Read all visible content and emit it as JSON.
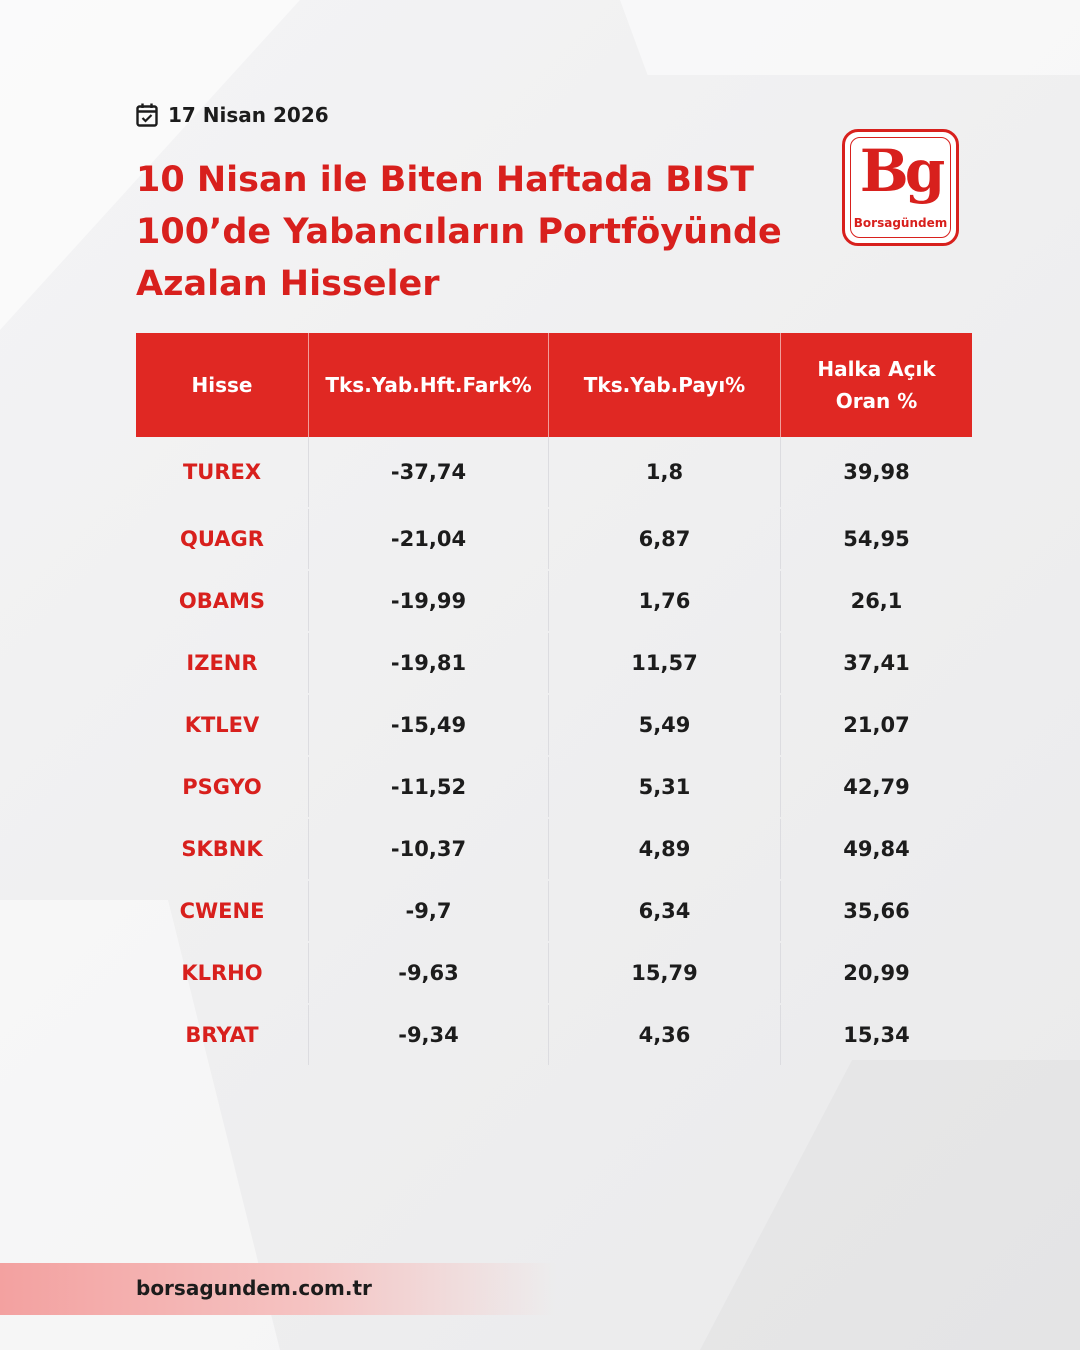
{
  "header": {
    "date": "17 Nisan 2026",
    "title": "10 Nisan ile Biten Haftada BIST 100’de Yabancıların Portföyünde Azalan Hisseler"
  },
  "logo": {
    "mark": "Bg",
    "wordmark": "Borsagündem"
  },
  "table": {
    "columns": [
      "Hisse",
      "Tks.Yab.Hft.Fark%",
      "Tks.Yab.Payı%",
      "Halka Açık Oran %"
    ],
    "rows": [
      [
        "TUREX",
        "-37,74",
        "1,8",
        "39,98"
      ],
      [
        "QUAGR",
        "-21,04",
        "6,87",
        "54,95"
      ],
      [
        "OBAMS",
        "-19,99",
        "1,76",
        "26,1"
      ],
      [
        "IZENR",
        "-19,81",
        "11,57",
        "37,41"
      ],
      [
        "KTLEV",
        "-15,49",
        "5,49",
        "21,07"
      ],
      [
        "PSGYO",
        "-11,52",
        "5,31",
        "42,79"
      ],
      [
        "SKBNK",
        "-10,37",
        "4,89",
        "49,84"
      ],
      [
        "CWENE",
        "-9,7",
        "6,34",
        "35,66"
      ],
      [
        "KLRHO",
        "-9,63",
        "15,79",
        "20,99"
      ],
      [
        "BRYAT",
        "-9,34",
        "4,36",
        "15,34"
      ]
    ]
  },
  "footer": {
    "url": "borsagundem.com.tr"
  },
  "colors": {
    "accent": "#d8201d",
    "header_bg": "#e02823",
    "text": "#1c1c1c"
  }
}
